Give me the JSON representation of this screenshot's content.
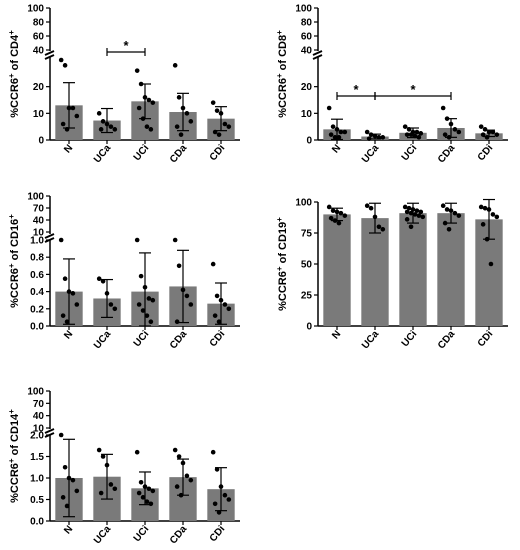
{
  "chart_data": [
    {
      "type": "bar",
      "ylabel_main": "%CCR6",
      "ylabel_sup1": "+",
      "ylabel_rest": " of CD4",
      "ylabel_sup2": "+",
      "categories": [
        "N",
        "UCa",
        "UCi",
        "CDa",
        "CDi"
      ],
      "values": [
        13,
        7.3,
        14.5,
        10.5,
        8
      ],
      "errors": [
        8.5,
        4.5,
        6.5,
        7,
        4.5
      ],
      "points": [
        [
          30,
          28,
          12,
          12,
          9,
          6,
          4
        ],
        [
          10,
          7,
          6,
          5,
          4,
          4
        ],
        [
          26,
          21,
          16,
          15,
          14,
          12,
          8,
          5,
          4
        ],
        [
          28,
          16,
          12,
          10,
          7,
          5,
          2
        ],
        [
          14,
          11,
          10,
          6,
          5,
          3,
          2
        ]
      ],
      "y_axis": {
        "lower_ticks": [
          "0",
          "10",
          "20"
        ],
        "upper_ticks": [
          "40",
          "60",
          "80",
          "100"
        ],
        "lower_max": 30,
        "break": true
      },
      "significance": [
        {
          "from": "UCa",
          "to": "UCi",
          "label": "*"
        }
      ]
    },
    {
      "type": "bar",
      "ylabel_main": "%CCR6",
      "ylabel_sup1": "+",
      "ylabel_rest": " of CD8",
      "ylabel_sup2": "+",
      "categories": [
        "N",
        "UCa",
        "UCi",
        "CDa",
        "CDi"
      ],
      "values": [
        4,
        1.3,
        2.7,
        4.5,
        2.5
      ],
      "errors": [
        3.8,
        0.9,
        1.8,
        3.5,
        1.2
      ],
      "points": [
        [
          12,
          5,
          4,
          3,
          3,
          2,
          1,
          1
        ],
        [
          3,
          2,
          1.5,
          1,
          1,
          0.5
        ],
        [
          5,
          4,
          3,
          3,
          2.5,
          2,
          2,
          1.5,
          1
        ],
        [
          12,
          8,
          6,
          4,
          3,
          2,
          1
        ],
        [
          5,
          4,
          3,
          3,
          2,
          2,
          1
        ]
      ],
      "y_axis": {
        "lower_ticks": [
          "0",
          "10",
          "20"
        ],
        "upper_ticks": [
          "40",
          "60",
          "80",
          "100"
        ],
        "lower_max": 30,
        "break": true
      },
      "significance": [
        {
          "from": "N",
          "to": "UCa",
          "label": "*"
        },
        {
          "from": "UCa",
          "to": "CDa",
          "label": "*"
        }
      ]
    },
    {
      "type": "bar",
      "ylabel_main": "%CCR6",
      "ylabel_sup1": "+",
      "ylabel_rest": " of CD16",
      "ylabel_sup2": "+",
      "categories": [
        "N",
        "UCa",
        "UCi",
        "CDa",
        "CDi"
      ],
      "values": [
        0.4,
        0.32,
        0.4,
        0.46,
        0.26
      ],
      "errors": [
        0.38,
        0.22,
        0.45,
        0.42,
        0.24
      ],
      "points": [
        [
          1.0,
          0.55,
          0.4,
          0.38,
          0.25,
          0.12,
          0.05
        ],
        [
          0.55,
          0.52,
          0.38,
          0.25,
          0.2
        ],
        [
          1.0,
          0.58,
          0.45,
          0.32,
          0.3,
          0.25,
          0.18,
          0.12,
          0.05
        ],
        [
          1.0,
          0.7,
          0.42,
          0.35,
          0.25,
          0.05
        ],
        [
          0.72,
          0.35,
          0.3,
          0.25,
          0.2,
          0.12,
          0.05
        ]
      ],
      "y_axis": {
        "lower_ticks": [
          "0.0",
          "0.2",
          "0.4",
          "0.6",
          "0.8",
          "1.0"
        ],
        "upper_ticks": [
          "10",
          "40",
          "70",
          "100"
        ],
        "lower_max": 1.0,
        "break": true
      },
      "significance": []
    },
    {
      "type": "bar",
      "ylabel_main": "%CCR6",
      "ylabel_sup1": "+",
      "ylabel_rest": " of CD19",
      "ylabel_sup2": "+",
      "categories": [
        "N",
        "UCa",
        "UCi",
        "CDa",
        "CDi"
      ],
      "values": [
        90,
        87,
        91,
        91,
        86
      ],
      "errors": [
        5,
        12,
        8,
        8,
        16
      ],
      "points": [
        [
          96,
          93,
          92,
          91,
          89,
          87,
          85,
          83
        ],
        [
          97,
          95,
          88,
          80,
          78
        ],
        [
          96,
          95,
          94,
          93,
          92,
          92,
          91,
          90,
          89,
          88,
          86,
          80
        ],
        [
          97,
          94,
          93,
          91,
          89,
          83,
          78
        ],
        [
          96,
          95,
          94,
          90,
          88,
          82,
          70,
          50
        ]
      ],
      "y_axis": {
        "ticks": [
          "0",
          "25",
          "50",
          "75",
          "100"
        ],
        "max": 100,
        "break": false
      },
      "significance": []
    },
    {
      "type": "bar",
      "ylabel_main": "%CCR6",
      "ylabel_sup1": "+",
      "ylabel_rest": " of CD14",
      "ylabel_sup2": "+",
      "categories": [
        "N",
        "UCa",
        "UCi",
        "CDa",
        "CDi"
      ],
      "values": [
        1.0,
        1.03,
        0.76,
        1.02,
        0.74
      ],
      "errors": [
        0.9,
        0.52,
        0.38,
        0.42,
        0.5
      ],
      "points": [
        [
          2.2,
          1.25,
          1.0,
          0.95,
          0.7,
          0.55,
          0.35
        ],
        [
          1.65,
          1.5,
          1.3,
          0.85,
          0.75,
          0.65
        ],
        [
          1.6,
          0.9,
          0.8,
          0.75,
          0.7,
          0.65,
          0.55,
          0.45,
          0.4
        ],
        [
          1.65,
          1.5,
          1.35,
          1.05,
          0.95,
          0.8,
          0.6
        ],
        [
          1.6,
          1.2,
          0.8,
          0.6,
          0.5,
          0.4,
          0.2
        ]
      ],
      "y_axis": {
        "lower_ticks": [
          "0.0",
          "0.5",
          "1.0",
          "1.5",
          "2.0"
        ],
        "upper_ticks": [
          "10",
          "40",
          "70",
          "100"
        ],
        "lower_max": 2.0,
        "break": true
      },
      "significance": []
    }
  ]
}
